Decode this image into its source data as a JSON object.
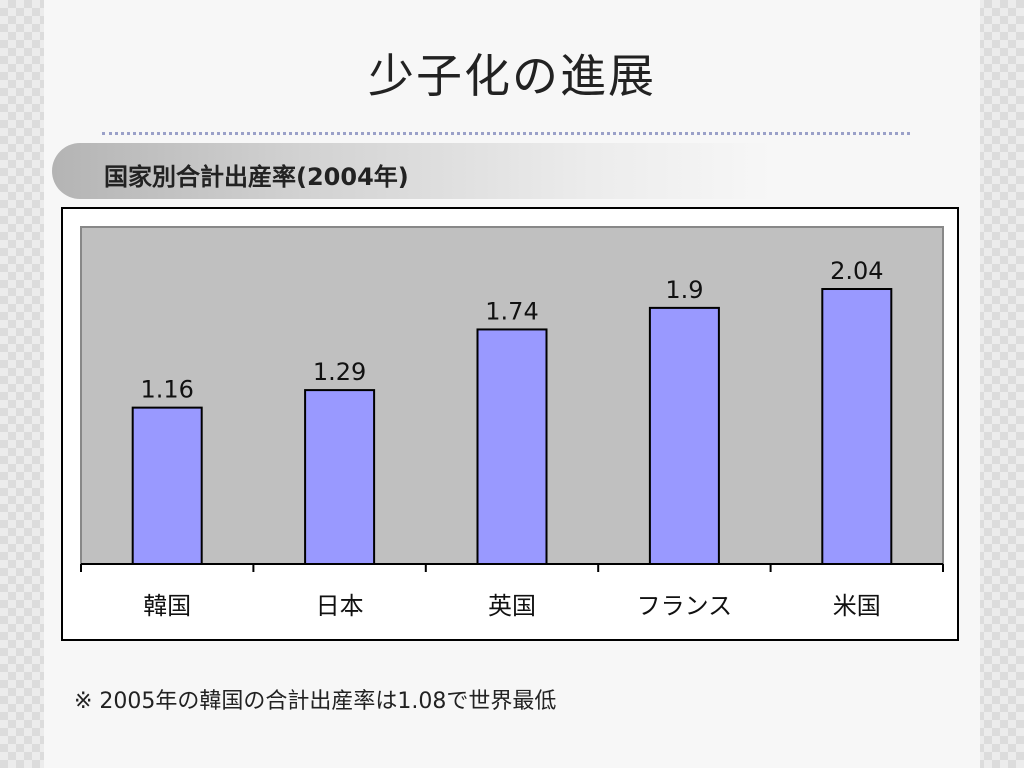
{
  "slide": {
    "title": "少子化の進展",
    "subtitle": "国家別合計出産率(2004年)",
    "footnote": "※ 2005年の韓国の合計出産率は1.08で世界最低"
  },
  "chart_data": {
    "type": "bar",
    "title": "",
    "xlabel": "",
    "ylabel": "",
    "categories": [
      "韓国",
      "日本",
      "英国",
      "フランス",
      "米国"
    ],
    "values": [
      1.16,
      1.29,
      1.74,
      1.9,
      2.04
    ],
    "data_labels": [
      "1.16",
      "1.29",
      "1.74",
      "1.9",
      "2.04"
    ],
    "ylim": [
      0,
      2.5
    ],
    "grid": false,
    "legend": "none",
    "colors": {
      "bar": "#9999ff",
      "plot_background": "#c0c0c0",
      "bar_outline": "#000000"
    }
  }
}
